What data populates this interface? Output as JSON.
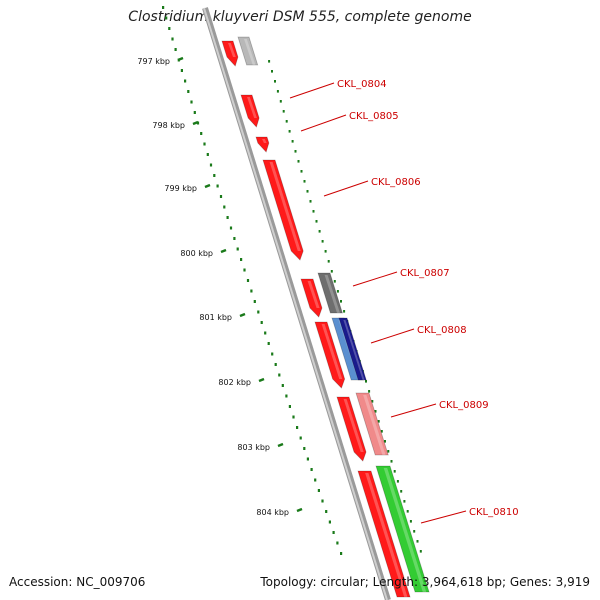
{
  "title": "Clostridium kluyveri DSM 555, complete genome",
  "accession": "Accession: NC_009706",
  "summary": "Topology: circular; Length: 3,964,618 bp; Genes: 3,919",
  "ruler": {
    "ticks": [
      "797 kbp",
      "798 kbp",
      "799 kbp",
      "800 kbp",
      "801 kbp",
      "802 kbp",
      "803 kbp",
      "804 kbp"
    ]
  },
  "genes": [
    {
      "label": "CKL_0804",
      "color": "#b8b8b8",
      "ring": "outer"
    },
    {
      "label": "CKL_0805",
      "color": "#ff1a1a",
      "ring": "inner"
    },
    {
      "label": "CKL_0806",
      "color": "#ff1a1a",
      "ring": "inner"
    },
    {
      "label": "CKL_0807",
      "color": "#6e6e6e",
      "ring": "outer"
    },
    {
      "label": "CKL_0808",
      "color": "#1a1a8c",
      "ring": "outer"
    },
    {
      "label": "CKL_0809",
      "color": "#f08a8a",
      "ring": "outer"
    },
    {
      "label": "CKL_0810",
      "color": "#33cc33",
      "ring": "outer"
    }
  ],
  "colors": {
    "backbone": "#808080",
    "ruler": "#1a7a1a",
    "label": "#cc0000",
    "cds": "#ff1a1a"
  }
}
